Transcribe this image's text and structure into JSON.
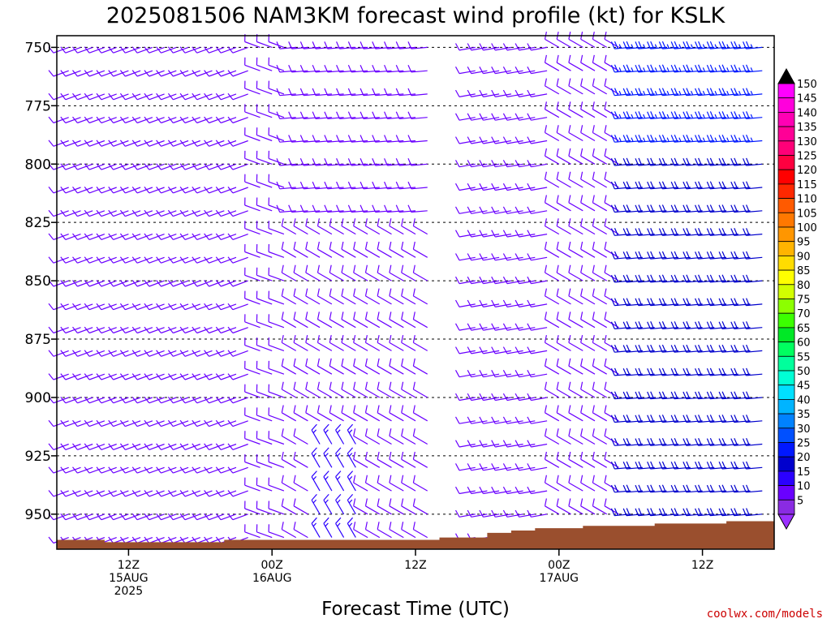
{
  "chart_data": {
    "type": "wind-barb-profile",
    "title": "2025081506 NAM3KM forecast wind profile (kt) for KSLK",
    "xlabel": "Forecast Time (UTC)",
    "ylabel": "",
    "units": "kt",
    "y_ticks": [
      750,
      775,
      800,
      825,
      850,
      875,
      900,
      925,
      950
    ],
    "ylim": [
      965,
      745
    ],
    "x_ticks": [
      {
        "label": "12Z",
        "date": "15AUG",
        "year": "2025"
      },
      {
        "label": "00Z",
        "date": "16AUG",
        "year": ""
      },
      {
        "label": "12Z",
        "date": "",
        "year": ""
      },
      {
        "label": "00Z",
        "date": "17AUG",
        "year": ""
      },
      {
        "label": "12Z",
        "date": "",
        "year": ""
      }
    ],
    "x_tick_forecast_hours": [
      6,
      18,
      30,
      42,
      54
    ],
    "forecast_hours_range": [
      0,
      60
    ],
    "pressure_levels": [
      960,
      950,
      940,
      930,
      920,
      910,
      900,
      890,
      880,
      870,
      860,
      850,
      840,
      830,
      820,
      810,
      800,
      790,
      780,
      770,
      760,
      750
    ],
    "surface_pressure": [
      [
        0,
        961
      ],
      [
        2,
        961
      ],
      [
        4,
        962
      ],
      [
        6,
        962
      ],
      [
        8,
        962
      ],
      [
        10,
        962
      ],
      [
        12,
        962
      ],
      [
        14,
        961
      ],
      [
        16,
        961
      ],
      [
        18,
        961
      ],
      [
        20,
        961
      ],
      [
        22,
        961
      ],
      [
        24,
        961
      ],
      [
        26,
        961
      ],
      [
        28,
        961
      ],
      [
        30,
        961
      ],
      [
        32,
        960
      ],
      [
        34,
        960
      ],
      [
        36,
        958
      ],
      [
        38,
        957
      ],
      [
        40,
        956
      ],
      [
        42,
        956
      ],
      [
        44,
        955
      ],
      [
        46,
        955
      ],
      [
        48,
        955
      ],
      [
        50,
        954
      ],
      [
        52,
        954
      ],
      [
        54,
        954
      ],
      [
        56,
        953
      ],
      [
        58,
        953
      ],
      [
        60,
        953
      ]
    ],
    "wind_regimes": [
      {
        "hours": [
          0,
          17
        ],
        "levels": [
          750,
          960
        ],
        "direction_deg": 250,
        "speed_kt": 10
      },
      {
        "hours": [
          17,
          20
        ],
        "levels": [
          750,
          960
        ],
        "direction_deg": 290,
        "speed_kt": 10
      },
      {
        "hours": [
          20,
          32
        ],
        "levels": [
          750,
          830
        ],
        "direction_deg": 265,
        "speed_kt": 10
      },
      {
        "hours": [
          20,
          32
        ],
        "levels": [
          830,
          960
        ],
        "direction_deg": 300,
        "speed_kt": 10
      },
      {
        "hours": [
          22,
          26
        ],
        "levels": [
          915,
          960
        ],
        "direction_deg": 330,
        "speed_kt": 15
      },
      {
        "hours": [
          32,
          35
        ],
        "levels": [
          845,
          960
        ],
        "direction_deg": 0,
        "speed_kt": 0
      },
      {
        "hours": [
          35,
          42
        ],
        "levels": [
          750,
          960
        ],
        "direction_deg": 260,
        "speed_kt": 10
      },
      {
        "hours": [
          42,
          48
        ],
        "levels": [
          750,
          960
        ],
        "direction_deg": 300,
        "speed_kt": 10
      },
      {
        "hours": [
          48,
          60
        ],
        "levels": [
          750,
          800
        ],
        "direction_deg": 265,
        "speed_kt": 25
      },
      {
        "hours": [
          48,
          60
        ],
        "levels": [
          800,
          960
        ],
        "direction_deg": 265,
        "speed_kt": 20
      }
    ],
    "colorbar": {
      "levels": [
        5,
        10,
        15,
        20,
        25,
        30,
        35,
        40,
        45,
        50,
        55,
        60,
        65,
        70,
        75,
        80,
        85,
        90,
        95,
        100,
        105,
        110,
        115,
        120,
        125,
        130,
        135,
        140,
        145,
        150
      ],
      "colors": [
        "#8a2be2",
        "#6a00ff",
        "#2b00ff",
        "#0000cd",
        "#0018ff",
        "#0050ff",
        "#0082ff",
        "#00b4ff",
        "#00e0ff",
        "#00ffd5",
        "#00ff9c",
        "#00ff60",
        "#00e826",
        "#3cff00",
        "#8cff00",
        "#d2ff00",
        "#ffff00",
        "#ffdc00",
        "#ffb400",
        "#ff9600",
        "#ff7800",
        "#ff5a00",
        "#ff2800",
        "#ff0000",
        "#ff0040",
        "#ff0078",
        "#ff0096",
        "#ff00b4",
        "#ff00dc",
        "#ff00ff"
      ],
      "top_arrow_color": "#000000",
      "bottom_arrow_color": "#9b30ff"
    },
    "colors": {
      "terrain": "#9a4f2e",
      "grid": "#000000",
      "frame": "#000000"
    }
  },
  "credit": "coolwx.com/models",
  "credit_color": "#cc0000"
}
